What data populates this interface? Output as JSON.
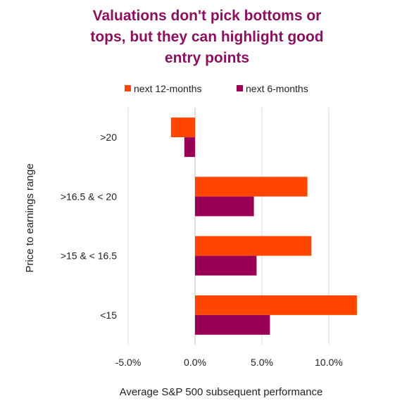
{
  "chart_data": {
    "type": "bar",
    "orientation": "horizontal",
    "title_lines": [
      "Valuations don't pick bottoms or",
      "tops, but they can highlight good",
      "entry points"
    ],
    "categories": [
      ">20",
      ">16.5 & < 20",
      ">15 & < 16.5",
      "<15"
    ],
    "series": [
      {
        "name": "next 12-months",
        "color": "#ff4500",
        "values": [
          -1.8,
          8.4,
          8.7,
          12.1
        ]
      },
      {
        "name": "next 6-months",
        "color": "#990055",
        "values": [
          -0.8,
          4.4,
          4.6,
          5.6
        ]
      }
    ],
    "xlabel": "Average  S&P 500 subsequent performance",
    "ylabel": "Price to earnings  range",
    "xlim": [
      -5,
      12.5
    ],
    "xticks": [
      -5,
      0,
      5,
      10
    ],
    "xtick_labels": [
      "-5.0%",
      "0.0%",
      "5.0%",
      "10.0%"
    ],
    "grid": "vertical",
    "legend_position": "top"
  }
}
